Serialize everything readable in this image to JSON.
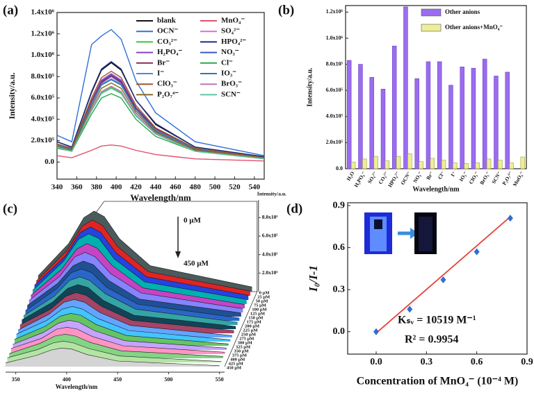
{
  "chart_data": [
    {
      "type": "line",
      "panel_label": "(a)",
      "x_label": "Wavelength/nm",
      "y_label": "Intensity/a.u.",
      "x": [
        340,
        355,
        375,
        385,
        395,
        405,
        420,
        440,
        480,
        550
      ],
      "xlim": [
        340,
        550
      ],
      "xticks": [
        340,
        360,
        380,
        400,
        420,
        440,
        460,
        480,
        500,
        520,
        540
      ],
      "ylim": [
        -160000,
        1400000
      ],
      "yticks": [
        {
          "value": 0,
          "label": "0.0"
        },
        {
          "value": 200000,
          "label": "2.0x10⁵"
        },
        {
          "value": 400000,
          "label": "4.0x10⁵"
        },
        {
          "value": 600000,
          "label": "6.0x10⁵"
        },
        {
          "value": 800000,
          "label": "8.0x10⁵"
        },
        {
          "value": 1000000,
          "label": "1.0x10⁶"
        },
        {
          "value": 1200000,
          "label": "1.2x10⁶"
        },
        {
          "value": 1400000,
          "label": "1.4x10⁶"
        }
      ],
      "legend": "upper right",
      "series": [
        {
          "name": "blank",
          "color": "#111111",
          "values": [
            190000,
            140000,
            650000,
            860000,
            930000,
            860000,
            580000,
            350000,
            140000,
            50000
          ]
        },
        {
          "name": "MnO₄⁻",
          "color": "#e2506e",
          "values": [
            60000,
            40000,
            110000,
            150000,
            160000,
            150000,
            110000,
            70000,
            30000,
            10000
          ]
        },
        {
          "name": "OCN⁻",
          "color": "#2f6fd8",
          "values": [
            250000,
            190000,
            1100000,
            1180000,
            1240000,
            1150000,
            760000,
            460000,
            190000,
            60000
          ]
        },
        {
          "name": "SO₄²⁻",
          "color": "#d86fd8",
          "values": [
            170000,
            120000,
            580000,
            770000,
            830000,
            770000,
            510000,
            320000,
            120000,
            40000
          ]
        },
        {
          "name": "CO₃²⁻",
          "color": "#3cc43c",
          "values": [
            140000,
            110000,
            490000,
            650000,
            700000,
            650000,
            430000,
            270000,
            110000,
            40000
          ]
        },
        {
          "name": "HPO₄²⁻",
          "color": "#1d2a80",
          "values": [
            190000,
            140000,
            660000,
            870000,
            940000,
            870000,
            580000,
            360000,
            140000,
            50000
          ]
        },
        {
          "name": "H₂PO₄⁻",
          "color": "#8a3fc8",
          "values": [
            160000,
            120000,
            560000,
            740000,
            800000,
            740000,
            500000,
            300000,
            120000,
            40000
          ]
        },
        {
          "name": "NO₃⁻",
          "color": "#3a56c4",
          "values": [
            160000,
            120000,
            570000,
            760000,
            820000,
            760000,
            510000,
            310000,
            120000,
            40000
          ]
        },
        {
          "name": "Br⁻",
          "color": "#8a2a55",
          "values": [
            160000,
            120000,
            570000,
            750000,
            810000,
            750000,
            500000,
            310000,
            120000,
            40000
          ]
        },
        {
          "name": "Cl⁻",
          "color": "#2aa84a",
          "values": [
            130000,
            100000,
            450000,
            600000,
            640000,
            600000,
            400000,
            240000,
            100000,
            30000
          ]
        },
        {
          "name": "I⁻",
          "color": "#4a8ad8",
          "values": [
            160000,
            120000,
            550000,
            730000,
            780000,
            730000,
            480000,
            300000,
            120000,
            40000
          ]
        },
        {
          "name": "IO₃⁻",
          "color": "#2f78a8",
          "values": [
            150000,
            120000,
            540000,
            720000,
            770000,
            720000,
            480000,
            290000,
            120000,
            40000
          ]
        },
        {
          "name": "ClO₃⁻",
          "color": "#a0552e",
          "values": [
            170000,
            130000,
            600000,
            790000,
            850000,
            790000,
            530000,
            320000,
            130000,
            40000
          ]
        },
        {
          "name": "BrO₃⁻",
          "color": "#b878b8",
          "values": [
            140000,
            110000,
            500000,
            660000,
            710000,
            660000,
            440000,
            270000,
            110000,
            40000
          ]
        },
        {
          "name": "P₂O₇⁴⁻",
          "color": "#8a6a22",
          "values": [
            150000,
            110000,
            520000,
            690000,
            740000,
            690000,
            460000,
            280000,
            110000,
            40000
          ]
        },
        {
          "name": "SCN⁻",
          "color": "#5fc4a2",
          "values": [
            140000,
            100000,
            480000,
            640000,
            690000,
            640000,
            430000,
            260000,
            100000,
            30000
          ]
        }
      ]
    },
    {
      "type": "bar",
      "panel_label": "(b)",
      "x_label": "Wavelength/nm",
      "y_label": "Intensity/a.u.",
      "categories": [
        "H₂O",
        "H₂PO₄⁻",
        "SO₄²⁻",
        "CO₃²⁻",
        "HPO₄²⁻",
        "OCN⁻",
        "NO₃⁻",
        "Br⁻",
        "Cl⁻",
        "I⁻",
        "IO₃⁻",
        "ClO₃⁻",
        "BrO₃⁻",
        "SCN⁻",
        "P₂O₇⁴⁻",
        "MnO₄⁻"
      ],
      "ylim": [
        0,
        1250000
      ],
      "yticks": [
        {
          "value": 0,
          "label": "0.0"
        },
        {
          "value": 200000,
          "label": "2.0x10⁵"
        },
        {
          "value": 400000,
          "label": "4.0x10⁵"
        },
        {
          "value": 600000,
          "label": "6.0x10⁵"
        },
        {
          "value": 800000,
          "label": "8.0x10⁵"
        },
        {
          "value": 1000000,
          "label": "1.0x10⁶"
        },
        {
          "value": 1200000,
          "label": "1.2x10⁶"
        }
      ],
      "legend": "upper right",
      "series": [
        {
          "name": "Other anions",
          "color": "#9b6cf0",
          "values": [
            830000,
            800000,
            700000,
            610000,
            940000,
            1240000,
            690000,
            820000,
            820000,
            640000,
            780000,
            770000,
            840000,
            710000,
            740000,
            null
          ]
        },
        {
          "name": "Other anions+MnO₄⁻",
          "color": "#eeee9a",
          "values": [
            50000,
            75000,
            95000,
            60000,
            95000,
            115000,
            55000,
            80000,
            65000,
            45000,
            40000,
            45000,
            75000,
            65000,
            45000,
            90000
          ]
        }
      ]
    },
    {
      "type": "waterfall3d",
      "panel_label": "(c)",
      "x_label": "Wavelength/nm",
      "z_label": "Intensity/a.u.",
      "x": [
        340,
        370,
        385,
        395,
        405,
        420,
        450,
        550
      ],
      "xlim": [
        340,
        555
      ],
      "xticks": [
        350,
        400,
        450,
        500,
        550
      ],
      "zlim": [
        0,
        900000
      ],
      "zticks": [
        {
          "value": 200000,
          "label": "2.0x10⁵"
        },
        {
          "value": 400000,
          "label": "4.0x10⁵"
        },
        {
          "value": 600000,
          "label": "6.0x10⁵"
        },
        {
          "value": 800000,
          "label": "8.0x10⁵"
        }
      ],
      "annotations": [
        "0 μM",
        "450 μM"
      ],
      "series": [
        {
          "name": "0 μM",
          "color": "#4b5b5b",
          "values": [
            170000,
            520000,
            800000,
            870000,
            810000,
            570000,
            280000,
            50000
          ]
        },
        {
          "name": "25 μM",
          "color": "#e02424",
          "values": [
            160000,
            490000,
            750000,
            820000,
            760000,
            530000,
            260000,
            50000
          ]
        },
        {
          "name": "50 μM",
          "color": "#2444e0",
          "values": [
            160000,
            470000,
            730000,
            790000,
            730000,
            510000,
            250000,
            50000
          ]
        },
        {
          "name": "75 μM",
          "color": "#00b0b0",
          "values": [
            150000,
            460000,
            700000,
            760000,
            710000,
            490000,
            240000,
            50000
          ]
        },
        {
          "name": "100 μM",
          "color": "#c444c4",
          "values": [
            140000,
            420000,
            640000,
            700000,
            650000,
            460000,
            220000,
            40000
          ]
        },
        {
          "name": "125 μM",
          "color": "#8484ff",
          "values": [
            130000,
            390000,
            600000,
            650000,
            600000,
            420000,
            210000,
            40000
          ]
        },
        {
          "name": "150 μM",
          "color": "#205094",
          "values": [
            120000,
            360000,
            550000,
            600000,
            560000,
            390000,
            190000,
            40000
          ]
        },
        {
          "name": "175 μM",
          "color": "#2a66c8",
          "values": [
            110000,
            340000,
            520000,
            560000,
            520000,
            360000,
            180000,
            30000
          ]
        },
        {
          "name": "200 μM",
          "color": "#34a4a4",
          "values": [
            100000,
            310000,
            480000,
            520000,
            480000,
            340000,
            170000,
            30000
          ]
        },
        {
          "name": "225 μM",
          "color": "#124458",
          "values": [
            100000,
            290000,
            440000,
            480000,
            450000,
            310000,
            150000,
            30000
          ]
        },
        {
          "name": "250 μM",
          "color": "#a44466",
          "values": [
            90000,
            260000,
            400000,
            440000,
            410000,
            290000,
            140000,
            30000
          ]
        },
        {
          "name": "275 μM",
          "color": "#64a4ff",
          "values": [
            80000,
            250000,
            380000,
            410000,
            380000,
            270000,
            130000,
            20000
          ]
        },
        {
          "name": "300 μM",
          "color": "#44c4ff",
          "values": [
            80000,
            230000,
            350000,
            380000,
            350000,
            250000,
            120000,
            20000
          ]
        },
        {
          "name": "325 μM",
          "color": "#64c464",
          "values": [
            70000,
            210000,
            320000,
            350000,
            330000,
            230000,
            110000,
            20000
          ]
        },
        {
          "name": "350 μM",
          "color": "#c4a4ff",
          "values": [
            60000,
            190000,
            290000,
            320000,
            300000,
            210000,
            100000,
            20000
          ]
        },
        {
          "name": "375 μM",
          "color": "#ff94c4",
          "values": [
            60000,
            170000,
            270000,
            290000,
            270000,
            190000,
            90000,
            20000
          ]
        },
        {
          "name": "400 μM",
          "color": "#84d484",
          "values": [
            50000,
            160000,
            240000,
            260000,
            240000,
            170000,
            80000,
            20000
          ]
        },
        {
          "name": "425 μM",
          "color": "#b4e4a4",
          "values": [
            50000,
            140000,
            210000,
            230000,
            210000,
            150000,
            70000,
            10000
          ]
        },
        {
          "name": "450 μM",
          "color": "#d4d4d4",
          "values": [
            40000,
            120000,
            180000,
            200000,
            190000,
            130000,
            60000,
            10000
          ]
        }
      ]
    },
    {
      "type": "scatter",
      "panel_label": "(d)",
      "x_label": "Concentration of MnO₄⁻ (10⁻⁴ M)",
      "y_label": "I₀/I-1",
      "x": [
        0,
        0.2,
        0.4,
        0.6,
        0.8
      ],
      "values": [
        0,
        0.16,
        0.37,
        0.57,
        0.81
      ],
      "color": "#2e6fd0",
      "fit": {
        "x": [
          0,
          0.8
        ],
        "values": [
          -0.01,
          0.82
        ],
        "color": "#e8403a"
      },
      "xlim": [
        -0.17,
        0.9
      ],
      "xticks": [
        {
          "value": 0,
          "label": "0.0"
        },
        0.3,
        0.6,
        0.9
      ],
      "ylim": [
        -0.16,
        0.92
      ],
      "yticks": [
        {
          "value": 0,
          "label": "0.0"
        },
        0.3,
        0.6,
        0.9
      ],
      "annotations": [
        "Kₛᵥ = 10519  M⁻¹",
        "R² = 0.9954"
      ]
    }
  ]
}
